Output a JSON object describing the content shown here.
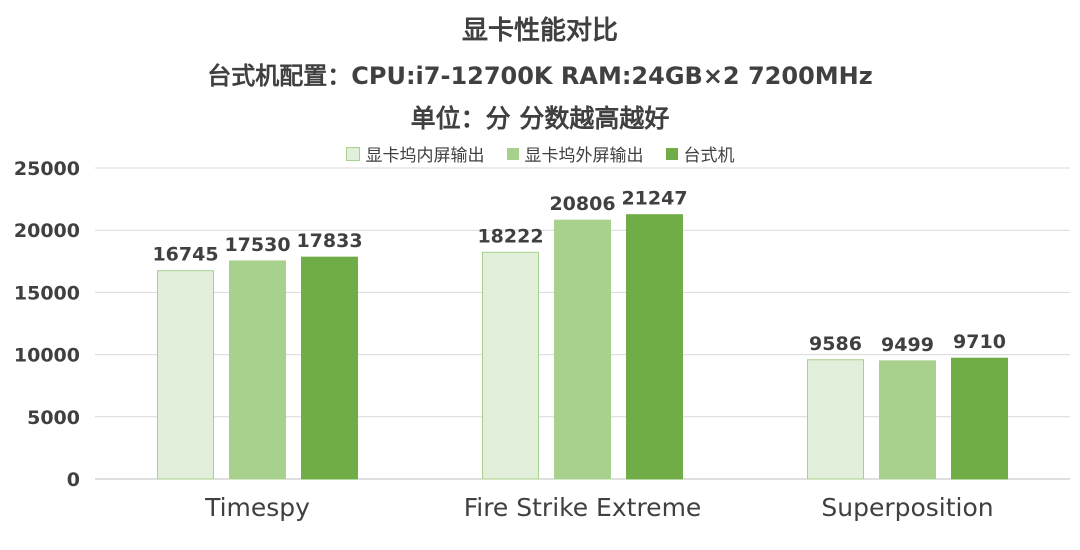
{
  "chart_data": {
    "type": "bar",
    "title": "显卡性能对比",
    "subtitle": "台式机配置：CPU:i7-12700K RAM:24GB×2 7200MHz",
    "subtitle2": "单位：分 分数越高越好",
    "categories": [
      "Timespy",
      "Fire Strike Extreme",
      "Superposition"
    ],
    "series": [
      {
        "name": "显卡坞内屏输出",
        "values": [
          16745,
          18222,
          9586
        ],
        "color": "#e2efda",
        "stroke": "#a9d08e"
      },
      {
        "name": "显卡坞外屏输出",
        "values": [
          17530,
          20806,
          9499
        ],
        "color": "#a9d18e",
        "stroke": "#a9d18e"
      },
      {
        "name": "台式机",
        "values": [
          17833,
          21247,
          9710
        ],
        "color": "#70ad47",
        "stroke": "#70ad47"
      }
    ],
    "ylim": [
      0,
      25000
    ],
    "yticks": [
      "0",
      "5000",
      "10000",
      "15000",
      "20000",
      "25000"
    ],
    "grid": true,
    "legend_position": "top"
  }
}
